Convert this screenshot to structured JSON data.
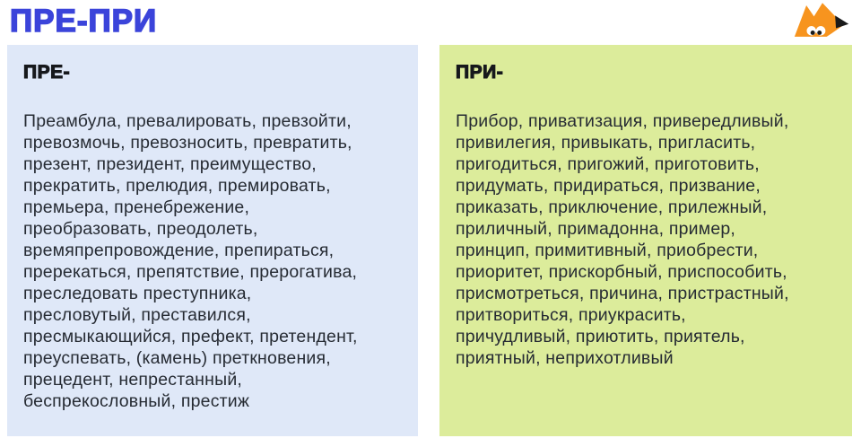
{
  "page": {
    "title": "ПРЕ-ПРИ",
    "title_color": "#3b44da",
    "background_color": "#ffffff"
  },
  "logo": {
    "icon": "fox-logo",
    "orange": "#f7941e",
    "nose_color": "#1a1a1a",
    "eye_color": "#ffffff"
  },
  "panels": [
    {
      "id": "pre",
      "header": "ПРЕ-",
      "background_color": "#dfe8f8",
      "lines": [
        "Преамбула, превалировать, превзойти,",
        "превозмочь, превозносить, превратить,",
        "презент, президент, преимущество,",
        "прекратить, прелюдия, премировать,",
        "премьера, пренебрежение,",
        "преобразовать, преодолеть,",
        "времяпрепровождение, препираться,",
        "пререкаться, препятствие, прерогатива,",
        "преследовать преступника,",
        "пресловутый, преставился,",
        "пресмыкающийся, префект, претендент,",
        "преуспевать, (камень) преткновения,",
        "прецедент, непрестанный,",
        "беспрекословный, престиж"
      ]
    },
    {
      "id": "pri",
      "header": "ПРИ-",
      "background_color": "#dcec9b",
      "lines": [
        "Прибор, приватизация, привередливый,",
        "привилегия, привыкать, пригласить,",
        "пригодиться, пригожий, приготовить,",
        "придумать, придираться, призвание,",
        "приказать, приключение, прилежный,",
        "приличный, примадонна, пример,",
        "принцип, примитивный, приобрести,",
        "приоритет, прискорбный, приспособить,",
        "присмотреться, причина, пристрастный,",
        "притвориться, приукрасить,",
        "причудливый, приютить, приятель,",
        "приятный, неприхотливый"
      ]
    }
  ]
}
